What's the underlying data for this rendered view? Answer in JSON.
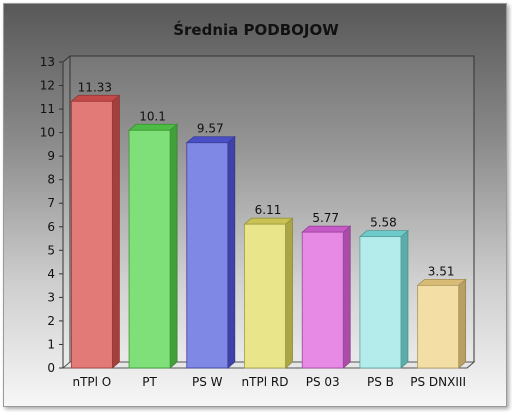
{
  "chart_data": {
    "type": "bar",
    "title": "Średnia PODBOJOW",
    "xlabel": "",
    "ylabel": "",
    "categories": [
      "nTPl O",
      "PT",
      "PS W",
      "nTPl RD",
      "PS 03",
      "PS B",
      "PS DNXIII"
    ],
    "values": [
      11.33,
      10.1,
      9.57,
      6.11,
      5.77,
      5.58,
      3.51
    ],
    "data_labels": [
      "11.33",
      "10.1",
      "9.57",
      "6.11",
      "5.77",
      "5.58",
      "3.51"
    ],
    "ylim": [
      0,
      13
    ],
    "yticks": [
      0,
      1,
      2,
      3,
      4,
      5,
      6,
      7,
      8,
      9,
      10,
      11,
      12,
      13
    ],
    "grid": false,
    "legend": "none",
    "bar_colors": [
      "#e27a78",
      "#7fe07a",
      "#8088e6",
      "#e8e58a",
      "#e68ae6",
      "#b4ecec",
      "#f3dfa6"
    ],
    "bar_edge_colors": [
      "#c24a48",
      "#4cbc44",
      "#4a4fc6",
      "#c8c254",
      "#c65ac6",
      "#6ccac8",
      "#d8bc76"
    ]
  }
}
